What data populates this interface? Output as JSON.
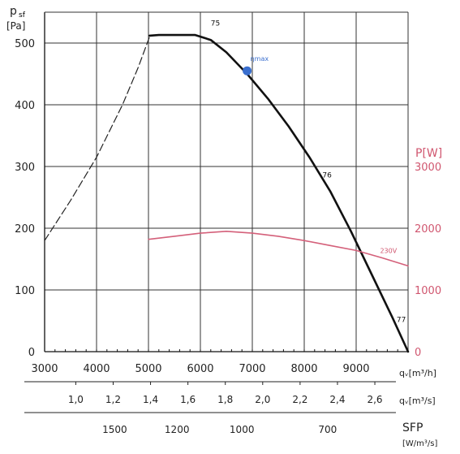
{
  "chart_data": {
    "type": "line",
    "y_label_top": "p",
    "y_label_sub": "sf",
    "y_unit": "[Pa]",
    "x_unit": "qᵥ[m³/h]",
    "x2_unit": "qᵥ[m³/s]",
    "sfp_label": "SFP",
    "sfp_unit": "[W/m³/s]",
    "p_label": "P[W]",
    "xlim": [
      3000,
      10000
    ],
    "ylim": [
      0,
      550
    ],
    "ylim_right": [
      0,
      5500
    ],
    "x_ticks": [
      "3000",
      "4000",
      "5000",
      "6000",
      "7000",
      "8000",
      "9000"
    ],
    "y_ticks": [
      "0",
      "100",
      "200",
      "300",
      "400",
      "500"
    ],
    "y_right_ticks": [
      "0",
      "1000",
      "2000",
      "3000"
    ],
    "x2_ticks": [
      {
        "label": "1,0",
        "x": 3600
      },
      {
        "label": "1,2",
        "x": 4320
      },
      {
        "label": "1,4",
        "x": 5040
      },
      {
        "label": "1,6",
        "x": 5760
      },
      {
        "label": "1,8",
        "x": 6480
      },
      {
        "label": "2,0",
        "x": 7200
      },
      {
        "label": "2,2",
        "x": 7920
      },
      {
        "label": "2,4",
        "x": 8640
      },
      {
        "label": "2,6",
        "x": 9360
      }
    ],
    "sfp_ticks": [
      {
        "label": "1500",
        "x": 4350
      },
      {
        "label": "1200",
        "x": 5550
      },
      {
        "label": "1000",
        "x": 6800
      },
      {
        "label": "700",
        "x": 8450
      }
    ],
    "series": [
      {
        "name": "pressure-dashed",
        "style": "dashed",
        "color": "#222222",
        "x": [
          3000,
          3500,
          4000,
          4500,
          4800,
          5020
        ],
        "y": [
          180,
          245,
          315,
          400,
          460,
          510
        ]
      },
      {
        "name": "pressure-solid",
        "style": "solid",
        "color": "#111111",
        "x": [
          5020,
          5200,
          5600,
          5900,
          6200,
          6500,
          6900,
          7300,
          7700,
          8100,
          8500,
          8900,
          9300,
          9700,
          10000
        ],
        "y": [
          512,
          513,
          513,
          513,
          505,
          485,
          450,
          410,
          365,
          315,
          260,
          195,
          125,
          55,
          0
        ]
      },
      {
        "name": "power",
        "style": "solid",
        "color": "#d4607a",
        "axis": "right",
        "x": [
          5000,
          5500,
          6000,
          6500,
          7000,
          7500,
          8000,
          8500,
          9000,
          9500,
          10000
        ],
        "y": [
          1820,
          1870,
          1920,
          1950,
          1920,
          1870,
          1800,
          1720,
          1640,
          1520,
          1390
        ]
      }
    ],
    "markers": [
      {
        "label": "ηmax",
        "x": 6900,
        "y": 455,
        "color": "#3a6fcf"
      }
    ],
    "annotations": [
      {
        "text": "75",
        "x": 6200,
        "y": 528
      },
      {
        "text": "76",
        "x": 8350,
        "y": 282
      },
      {
        "text": "77",
        "x": 9780,
        "y": 48
      },
      {
        "text": "230V",
        "x": 9460,
        "y": 160
      }
    ],
    "grid": true
  }
}
